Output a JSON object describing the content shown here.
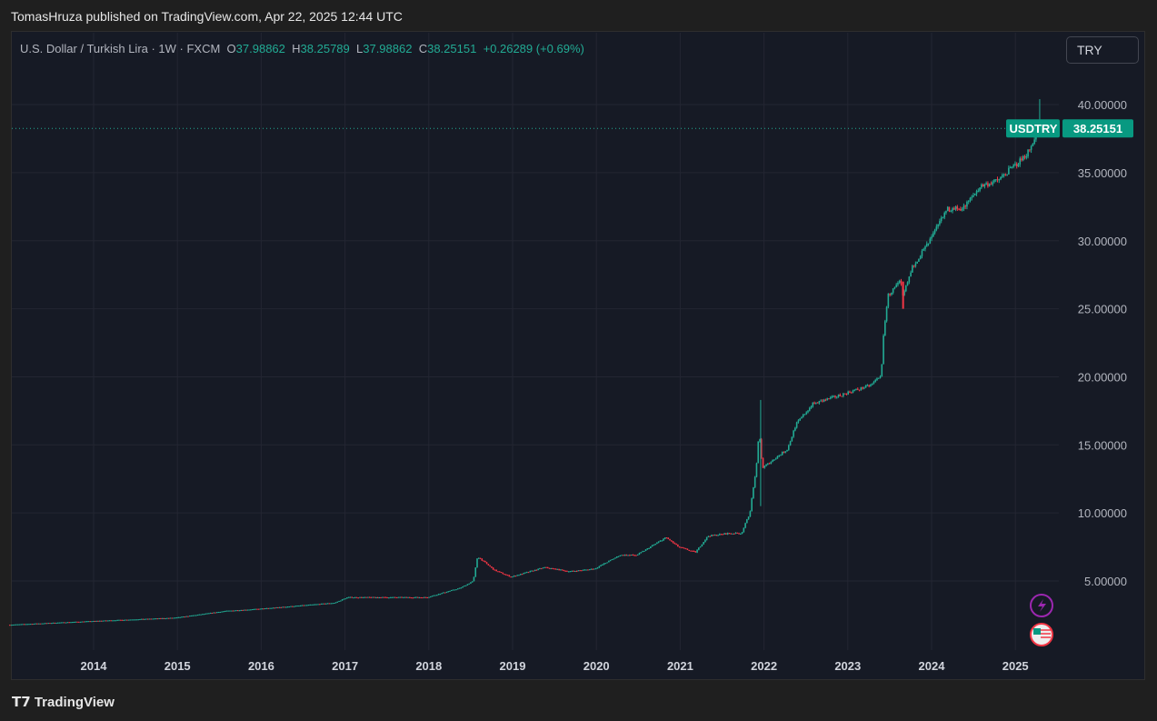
{
  "header": {
    "published": "TomasHruza published on TradingView.com, Apr 22, 2025 12:44 UTC"
  },
  "legend": {
    "symbol": "U.S. Dollar / Turkish Lira · 1W · FXCM",
    "o_label": "O",
    "o": "37.98862",
    "h_label": "H",
    "h": "38.25789",
    "l_label": "L",
    "l": "37.98862",
    "c_label": "C",
    "c": "38.25151",
    "change": "+0.26289 (+0.69%)"
  },
  "currency_button": "TRY",
  "price_tag": {
    "symbol": "USDTRY",
    "price": "38.25151"
  },
  "footer": {
    "brand": "TradingView"
  },
  "colors": {
    "up": "#22ab94",
    "down": "#f23645",
    "bg": "#161a25"
  },
  "chart_data": {
    "type": "candlestick",
    "title": "U.S. Dollar / Turkish Lira · 1W · FXCM",
    "y_ticks": [
      "5.00000",
      "10.00000",
      "15.00000",
      "20.00000",
      "25.00000",
      "30.00000",
      "35.00000",
      "40.00000"
    ],
    "x_ticks": [
      "2014",
      "2015",
      "2016",
      "2017",
      "2018",
      "2019",
      "2020",
      "2021",
      "2022",
      "2023",
      "2024",
      "2025"
    ],
    "ylim": [
      0.2,
      45.4
    ],
    "xlim": [
      2013.0,
      2025.45
    ],
    "last_price": 38.25151,
    "path": [
      [
        2013.0,
        1.78
      ],
      [
        2014.0,
        2.05
      ],
      [
        2015.0,
        2.3
      ],
      [
        2015.6,
        2.8
      ],
      [
        2016.0,
        2.95
      ],
      [
        2016.9,
        3.4
      ],
      [
        2017.05,
        3.8
      ],
      [
        2018.0,
        3.8
      ],
      [
        2018.4,
        4.5
      ],
      [
        2018.55,
        5.0
      ],
      [
        2018.6,
        6.8
      ],
      [
        2018.8,
        5.8
      ],
      [
        2019.0,
        5.3
      ],
      [
        2019.4,
        6.0
      ],
      [
        2019.7,
        5.7
      ],
      [
        2020.0,
        5.9
      ],
      [
        2020.3,
        6.9
      ],
      [
        2020.5,
        6.9
      ],
      [
        2020.85,
        8.2
      ],
      [
        2021.0,
        7.5
      ],
      [
        2021.2,
        7.1
      ],
      [
        2021.35,
        8.3
      ],
      [
        2021.6,
        8.5
      ],
      [
        2021.75,
        8.5
      ],
      [
        2021.85,
        10
      ],
      [
        2021.93,
        13.5
      ],
      [
        2021.96,
        16
      ],
      [
        2022.0,
        13.3
      ],
      [
        2022.3,
        14.7
      ],
      [
        2022.4,
        16.5
      ],
      [
        2022.6,
        18.0
      ],
      [
        2023.0,
        18.8
      ],
      [
        2023.3,
        19.4
      ],
      [
        2023.42,
        20.2
      ],
      [
        2023.45,
        23.5
      ],
      [
        2023.5,
        26
      ],
      [
        2023.65,
        27
      ],
      [
        2023.67,
        25.8
      ],
      [
        2023.8,
        28.2
      ],
      [
        2024.0,
        30
      ],
      [
        2024.2,
        32.3
      ],
      [
        2024.4,
        32.4
      ],
      [
        2024.6,
        34
      ],
      [
        2024.8,
        34.4
      ],
      [
        2025.1,
        36
      ],
      [
        2025.2,
        36.8
      ],
      [
        2025.27,
        38.0
      ]
    ]
  }
}
